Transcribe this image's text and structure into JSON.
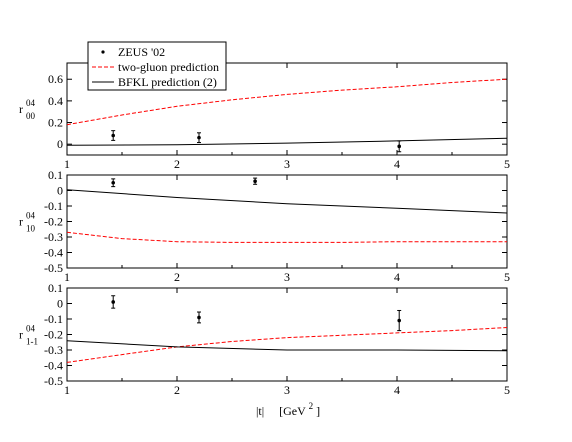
{
  "xlabel": {
    "abs_t": "|t|",
    "unit": "[GeV",
    "power": "2",
    "close": "]"
  },
  "legend": {
    "entries": [
      {
        "label": "ZEUS '02",
        "style": "points",
        "color": "#000000"
      },
      {
        "label": "two-gluon prediction",
        "style": "dashed",
        "color": "#ff0000"
      },
      {
        "label": "BFKL prediction (2)",
        "style": "solid",
        "color": "#000000"
      }
    ]
  },
  "colors": {
    "two_gluon": "#ff0000",
    "bfkl": "#000000",
    "data": "#000000"
  },
  "chart_data": [
    {
      "type": "line",
      "ylabel": {
        "sym": "r",
        "sup": "04",
        "sub": "00"
      },
      "xlim": [
        1,
        5
      ],
      "ylim": [
        -0.1,
        0.75
      ],
      "yticks": [
        0,
        0.2,
        0.4,
        0.6
      ],
      "ytick_labels": [
        "0",
        "0.2",
        "0.4",
        "0.6"
      ],
      "xticks": [
        1,
        2,
        3,
        4,
        5
      ],
      "xtick_labels": [
        "1",
        "2",
        "3",
        "4",
        "5"
      ],
      "series": [
        {
          "name": "two-gluon prediction",
          "style": "dashed",
          "x": [
            1,
            1.5,
            2,
            2.5,
            3,
            3.5,
            4,
            4.5,
            5
          ],
          "y": [
            0.18,
            0.27,
            0.35,
            0.41,
            0.46,
            0.5,
            0.53,
            0.57,
            0.6
          ]
        },
        {
          "name": "BFKL prediction (2)",
          "style": "solid",
          "x": [
            1,
            2,
            3,
            4,
            5
          ],
          "y": [
            -0.01,
            -0.005,
            0.01,
            0.03,
            0.055
          ]
        }
      ],
      "points": {
        "name": "ZEUS '02",
        "x": [
          1.42,
          2.2,
          4.02
        ],
        "y": [
          0.08,
          0.06,
          -0.02
        ],
        "err": [
          0.045,
          0.045,
          0.05
        ]
      }
    },
    {
      "type": "line",
      "ylabel": {
        "sym": "r",
        "sup": "04",
        "sub": "10"
      },
      "xlim": [
        1,
        5
      ],
      "ylim": [
        -0.5,
        0.1
      ],
      "yticks": [
        0.1,
        0,
        -0.1,
        -0.2,
        -0.3,
        -0.4,
        -0.5
      ],
      "ytick_labels": [
        "0.1",
        "0",
        "-0.1",
        "-0.2",
        "-0.3",
        "-0.4",
        "-0.5"
      ],
      "xticks": [
        1,
        2,
        3,
        4,
        5
      ],
      "xtick_labels": [
        "1",
        "2",
        "3",
        "4",
        "5"
      ],
      "series": [
        {
          "name": "two-gluon prediction",
          "style": "dashed",
          "x": [
            1,
            1.5,
            2,
            2.5,
            3,
            3.5,
            4,
            4.5,
            5
          ],
          "y": [
            -0.27,
            -0.31,
            -0.33,
            -0.335,
            -0.335,
            -0.335,
            -0.33,
            -0.33,
            -0.33
          ]
        },
        {
          "name": "BFKL prediction (2)",
          "style": "solid",
          "x": [
            1,
            2,
            3,
            4,
            5
          ],
          "y": [
            0.005,
            -0.045,
            -0.085,
            -0.115,
            -0.145
          ]
        }
      ],
      "points": {
        "name": "ZEUS '02",
        "x": [
          1.42,
          2.71
        ],
        "y": [
          0.05,
          0.06
        ],
        "err": [
          0.025,
          0.02
        ]
      }
    },
    {
      "type": "line",
      "ylabel": {
        "sym": "r",
        "sup": "04",
        "sub": "1-1"
      },
      "xlim": [
        1,
        5
      ],
      "ylim": [
        -0.5,
        0.1
      ],
      "yticks": [
        0.1,
        0,
        -0.1,
        -0.2,
        -0.3,
        -0.4,
        -0.5
      ],
      "ytick_labels": [
        "0.1",
        "0",
        "-0.1",
        "-0.2",
        "-0.3",
        "-0.4",
        "-0.5"
      ],
      "xticks": [
        1,
        2,
        3,
        4,
        5
      ],
      "xtick_labels": [
        "1",
        "2",
        "3",
        "4",
        "5"
      ],
      "series": [
        {
          "name": "two-gluon prediction",
          "style": "dashed",
          "x": [
            1,
            1.5,
            2,
            2.5,
            3,
            3.5,
            4,
            4.5,
            5
          ],
          "y": [
            -0.38,
            -0.33,
            -0.28,
            -0.245,
            -0.22,
            -0.205,
            -0.19,
            -0.175,
            -0.155
          ]
        },
        {
          "name": "BFKL prediction (2)",
          "style": "solid",
          "x": [
            1,
            2,
            3,
            4,
            5
          ],
          "y": [
            -0.24,
            -0.28,
            -0.3,
            -0.3,
            -0.305
          ]
        }
      ],
      "points": {
        "name": "ZEUS '02",
        "x": [
          1.42,
          2.2,
          4.02
        ],
        "y": [
          0.01,
          -0.09,
          -0.11
        ],
        "err": [
          0.04,
          0.035,
          0.065
        ]
      }
    }
  ]
}
